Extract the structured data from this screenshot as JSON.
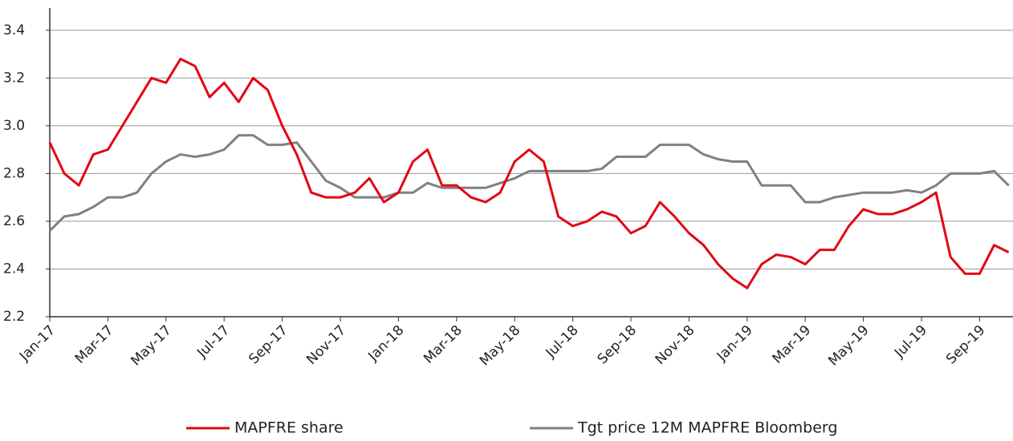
{
  "chart_data": {
    "type": "line",
    "categories": [
      "Jan-17",
      null,
      null,
      null,
      "Mar-17",
      null,
      null,
      null,
      "May-17",
      null,
      null,
      null,
      "Jul-17",
      null,
      null,
      null,
      "Sep-17",
      null,
      null,
      null,
      "Nov-17",
      null,
      null,
      null,
      "Jan-18",
      null,
      null,
      null,
      "Mar-18",
      null,
      null,
      null,
      "May-18",
      null,
      null,
      null,
      "Jul-18",
      null,
      null,
      null,
      "Sep-18",
      null,
      null,
      null,
      "Nov-18",
      null,
      null,
      null,
      "Jan-19",
      null,
      null,
      null,
      "Mar-19",
      null,
      null,
      null,
      "May-19",
      null,
      null,
      null,
      "Jul-19",
      null,
      null,
      null,
      "Sep-19",
      null,
      null
    ],
    "series": [
      {
        "name": "MAPFRE share",
        "color": "#e30613",
        "values": [
          2.93,
          2.8,
          2.75,
          2.88,
          2.9,
          3.0,
          3.1,
          3.2,
          3.18,
          3.28,
          3.25,
          3.12,
          3.18,
          3.1,
          3.2,
          3.15,
          3.0,
          2.88,
          2.72,
          2.7,
          2.7,
          2.72,
          2.78,
          2.68,
          2.72,
          2.85,
          2.9,
          2.75,
          2.75,
          2.7,
          2.68,
          2.72,
          2.85,
          2.9,
          2.85,
          2.62,
          2.58,
          2.6,
          2.64,
          2.62,
          2.55,
          2.58,
          2.68,
          2.62,
          2.55,
          2.5,
          2.42,
          2.36,
          2.32,
          2.42,
          2.46,
          2.45,
          2.42,
          2.48,
          2.48,
          2.58,
          2.65,
          2.63,
          2.63,
          2.65,
          2.68,
          2.72,
          2.45,
          2.38,
          2.38,
          2.5,
          2.47
        ]
      },
      {
        "name": "Tgt price 12M MAPFRE Bloomberg",
        "color": "#808080",
        "values": [
          2.56,
          2.62,
          2.63,
          2.66,
          2.7,
          2.7,
          2.72,
          2.8,
          2.85,
          2.88,
          2.87,
          2.88,
          2.9,
          2.96,
          2.96,
          2.92,
          2.92,
          2.93,
          2.85,
          2.77,
          2.74,
          2.7,
          2.7,
          2.7,
          2.72,
          2.72,
          2.76,
          2.74,
          2.74,
          2.74,
          2.74,
          2.76,
          2.78,
          2.81,
          2.81,
          2.81,
          2.81,
          2.81,
          2.82,
          2.87,
          2.87,
          2.87,
          2.92,
          2.92,
          2.92,
          2.88,
          2.86,
          2.85,
          2.85,
          2.75,
          2.75,
          2.75,
          2.68,
          2.68,
          2.7,
          2.71,
          2.72,
          2.72,
          2.72,
          2.73,
          2.72,
          2.75,
          2.8,
          2.8,
          2.8,
          2.81,
          2.75
        ]
      }
    ],
    "ylim": [
      2.2,
      3.5
    ],
    "yticks": [
      2.2,
      2.4,
      2.6,
      2.8,
      {
        "value": 3,
        "label": "3.0"
      },
      3.2,
      3.4
    ],
    "grid": true,
    "legend": "bottom"
  }
}
